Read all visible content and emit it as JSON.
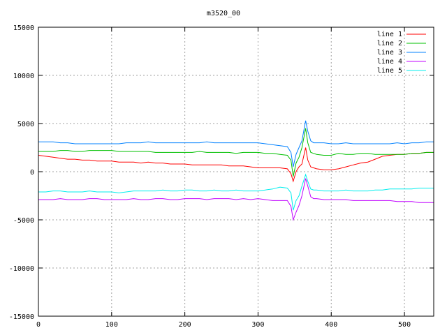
{
  "chart_data": {
    "type": "line",
    "title": "m3520_00",
    "xlabel": "",
    "ylabel": "",
    "xlim": [
      0,
      540
    ],
    "ylim": [
      -15000,
      15000
    ],
    "xticks": [
      0,
      100,
      200,
      300,
      400,
      500
    ],
    "yticks": [
      -15000,
      -10000,
      -5000,
      0,
      5000,
      10000,
      15000
    ],
    "grid": true,
    "legend_position": "top-right",
    "x": [
      0,
      10,
      20,
      30,
      40,
      50,
      60,
      70,
      80,
      90,
      100,
      110,
      120,
      130,
      140,
      150,
      160,
      170,
      180,
      190,
      200,
      210,
      220,
      230,
      240,
      250,
      260,
      270,
      280,
      290,
      300,
      310,
      320,
      330,
      340,
      345,
      348,
      352,
      356,
      360,
      365,
      368,
      372,
      376,
      380,
      390,
      400,
      410,
      420,
      430,
      440,
      450,
      460,
      470,
      480,
      490,
      500,
      510,
      520,
      530,
      540
    ],
    "series": [
      {
        "name": "line 1",
        "color": "#ff0000",
        "values": [
          1700,
          1600,
          1500,
          1400,
          1300,
          1300,
          1200,
          1200,
          1100,
          1100,
          1100,
          1000,
          1000,
          1000,
          900,
          1000,
          900,
          900,
          800,
          800,
          800,
          700,
          700,
          700,
          700,
          700,
          600,
          600,
          600,
          500,
          400,
          400,
          400,
          400,
          300,
          -200,
          -1000,
          0,
          500,
          800,
          2500,
          1200,
          500,
          400,
          300,
          200,
          200,
          300,
          500,
          700,
          900,
          1000,
          1300,
          1600,
          1700,
          1800,
          1800,
          1900,
          1900,
          2000,
          2000
        ]
      },
      {
        "name": "line 2",
        "color": "#00c000",
        "values": [
          2100,
          2100,
          2100,
          2200,
          2200,
          2100,
          2100,
          2200,
          2200,
          2200,
          2200,
          2100,
          2100,
          2100,
          2100,
          2100,
          2000,
          2000,
          2000,
          2000,
          2000,
          2000,
          2100,
          2000,
          2000,
          2000,
          2000,
          1900,
          2000,
          2000,
          2000,
          1900,
          1900,
          1800,
          1700,
          1200,
          -500,
          900,
          1500,
          2500,
          4500,
          3000,
          2000,
          1900,
          1800,
          1700,
          1700,
          1900,
          1800,
          1800,
          1900,
          1900,
          1800,
          1800,
          1800,
          1800,
          1800,
          1900,
          1900,
          2000,
          2000
        ]
      },
      {
        "name": "line 3",
        "color": "#0080ff",
        "values": [
          3100,
          3100,
          3100,
          3000,
          3000,
          2900,
          2900,
          2900,
          2900,
          2900,
          2900,
          2900,
          3000,
          3000,
          3000,
          3100,
          3000,
          3000,
          3000,
          3000,
          3000,
          3000,
          3000,
          3100,
          3000,
          3000,
          3000,
          3000,
          3000,
          3000,
          3000,
          2900,
          2800,
          2700,
          2600,
          2000,
          500,
          1800,
          2500,
          3200,
          5300,
          4200,
          3200,
          3000,
          3000,
          3000,
          2900,
          2900,
          3000,
          2900,
          2900,
          2900,
          2900,
          2900,
          2900,
          3000,
          2900,
          3000,
          3000,
          3100,
          3100
        ]
      },
      {
        "name": "line 4",
        "color": "#c000ff",
        "values": [
          -2900,
          -2900,
          -2900,
          -2800,
          -2900,
          -2900,
          -2900,
          -2800,
          -2800,
          -2900,
          -2900,
          -2900,
          -2900,
          -2800,
          -2900,
          -2900,
          -2800,
          -2800,
          -2900,
          -2900,
          -2800,
          -2800,
          -2800,
          -2900,
          -2800,
          -2800,
          -2800,
          -2900,
          -2800,
          -2900,
          -2800,
          -2900,
          -3000,
          -3000,
          -3000,
          -3600,
          -5000,
          -4200,
          -3500,
          -2500,
          -700,
          -1500,
          -2600,
          -2800,
          -2800,
          -2900,
          -2900,
          -2900,
          -2900,
          -3000,
          -3000,
          -3000,
          -3000,
          -3000,
          -3000,
          -3100,
          -3100,
          -3100,
          -3200,
          -3200,
          -3200
        ]
      },
      {
        "name": "line 5",
        "color": "#00eeee",
        "values": [
          -2100,
          -2100,
          -2000,
          -2000,
          -2100,
          -2100,
          -2100,
          -2000,
          -2100,
          -2100,
          -2100,
          -2200,
          -2100,
          -2000,
          -2000,
          -2000,
          -2000,
          -1900,
          -2000,
          -2000,
          -1900,
          -1900,
          -2000,
          -2000,
          -1900,
          -2000,
          -2000,
          -1900,
          -2000,
          -2000,
          -2000,
          -1900,
          -1800,
          -1600,
          -1700,
          -2200,
          -4000,
          -3000,
          -2500,
          -1500,
          -300,
          -1000,
          -1800,
          -1900,
          -1900,
          -2000,
          -2000,
          -2000,
          -1900,
          -2000,
          -2000,
          -2000,
          -1900,
          -1900,
          -1800,
          -1800,
          -1800,
          -1800,
          -1700,
          -1700,
          -1700
        ]
      }
    ]
  }
}
